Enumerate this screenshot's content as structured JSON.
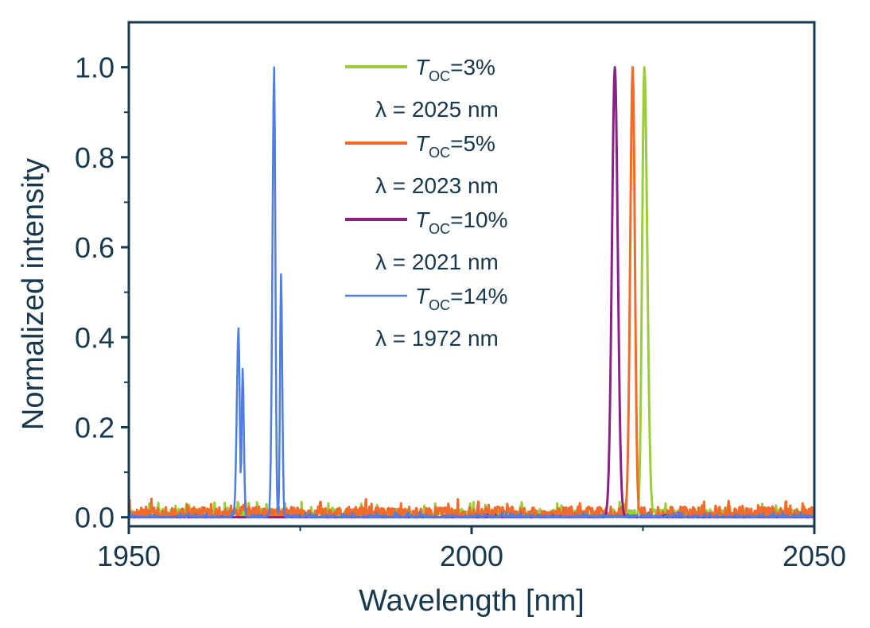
{
  "chart_data": {
    "type": "line",
    "title": "",
    "xlabel": "Wavelength [nm]",
    "ylabel": "Normalized  intensity",
    "xlim": [
      1950,
      2050
    ],
    "ylim": [
      -0.02,
      1.1
    ],
    "xticks": [
      1950,
      2000,
      2050
    ],
    "xtick_labels": [
      "1950",
      "2000",
      "2050"
    ],
    "yticks": [
      0.0,
      0.2,
      0.4,
      0.6,
      0.8,
      1.0
    ],
    "ytick_labels": [
      "0.0",
      "0.2",
      "0.4",
      "0.6",
      "0.8",
      "1.0"
    ],
    "legend_position": "top-center",
    "series": [
      {
        "name": "T_OC=3%",
        "label_symbol": "T",
        "label_sub": "OC",
        "label_value": "=3%",
        "wavelength_label": "λ = 2025 nm",
        "color": "#9ccc3c",
        "noise_amplitude": 0.03,
        "noise_offset": 0.005,
        "peaks": [
          {
            "x": 2025.2,
            "y": 1.0,
            "left": 0.45,
            "right": 0.6
          }
        ]
      },
      {
        "name": "T_OC=5%",
        "label_symbol": "T",
        "label_sub": "OC",
        "label_value": "=5%",
        "wavelength_label": "λ = 2023 nm",
        "color": "#f46a2a",
        "noise_amplitude": 0.035,
        "noise_offset": 0.008,
        "peaks": [
          {
            "x": 2023.5,
            "y": 1.0,
            "left": 0.5,
            "right": 0.45
          }
        ]
      },
      {
        "name": "T_OC=10%",
        "label_symbol": "T",
        "label_sub": "OC",
        "label_value": "=10%",
        "wavelength_label": "λ = 2021 nm",
        "color": "#8b2186",
        "noise_amplitude": 0.018,
        "noise_offset": -0.012,
        "peaks": [
          {
            "x": 2020.9,
            "y": 1.0,
            "left": 0.6,
            "right": 0.6
          }
        ]
      },
      {
        "name": "T_OC=14%",
        "label_symbol": "T",
        "label_sub": "OC",
        "label_value": "=14%",
        "wavelength_label": "λ = 1972 nm",
        "color": "#4e7de3",
        "noise_amplitude": 0.012,
        "noise_offset": 0.0,
        "peaks": [
          {
            "x": 1966.0,
            "y": 0.42,
            "left": 0.35,
            "right": 0.25
          },
          {
            "x": 1966.6,
            "y": 0.33,
            "left": 0.2,
            "right": 0.25
          },
          {
            "x": 1971.2,
            "y": 1.0,
            "left": 0.35,
            "right": 0.25
          },
          {
            "x": 1972.2,
            "y": 0.54,
            "left": 0.2,
            "right": 0.25
          }
        ]
      }
    ]
  }
}
